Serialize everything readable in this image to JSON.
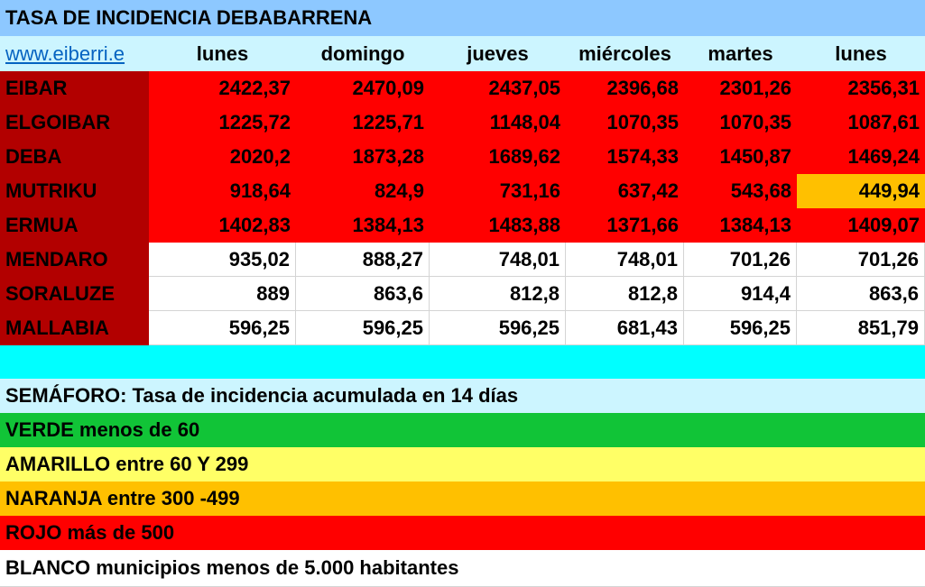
{
  "title": "TASA DE INCIDENCIA DEBABARRENA",
  "link": "www.eiberri.e",
  "days": [
    "lunes",
    "domingo",
    "jueves",
    "miércoles",
    "martes",
    "lunes"
  ],
  "rows": [
    {
      "name": "EIBAR",
      "values": [
        "2422,37",
        "2470,09",
        "2437,05",
        "2396,68",
        "2301,26",
        "2356,31"
      ]
    },
    {
      "name": "ELGOIBAR",
      "values": [
        "1225,72",
        "1225,71",
        "1148,04",
        "1070,35",
        "1070,35",
        "1087,61"
      ]
    },
    {
      "name": "DEBA",
      "values": [
        "2020,2",
        "1873,28",
        "1689,62",
        "1574,33",
        "1450,87",
        "1469,24"
      ]
    },
    {
      "name": "MUTRIKU",
      "values": [
        "918,64",
        "824,9",
        "731,16",
        "637,42",
        "543,68",
        "449,94"
      ]
    },
    {
      "name": "ERMUA",
      "values": [
        "1402,83",
        "1384,13",
        "1483,88",
        "1371,66",
        "1384,13",
        "1409,07"
      ]
    },
    {
      "name": "MENDARO",
      "values": [
        "935,02",
        "888,27",
        "748,01",
        "748,01",
        "701,26",
        "701,26"
      ]
    },
    {
      "name": "SORALUZE",
      "values": [
        "889",
        "863,6",
        "812,8",
        "812,8",
        "914,4",
        "863,6"
      ]
    },
    {
      "name": "MALLABIA",
      "values": [
        "596,25",
        "596,25",
        "596,25",
        "681,43",
        "596,25",
        "851,79"
      ]
    }
  ],
  "cell_colors": [
    [
      "red",
      "red",
      "red",
      "red",
      "red",
      "red"
    ],
    [
      "red",
      "red",
      "red",
      "red",
      "red",
      "red"
    ],
    [
      "red",
      "red",
      "red",
      "red",
      "red",
      "red"
    ],
    [
      "red",
      "red",
      "red",
      "red",
      "red",
      "orange"
    ],
    [
      "red",
      "red",
      "red",
      "red",
      "red",
      "red"
    ],
    [
      "white",
      "white",
      "white",
      "white",
      "white",
      "white"
    ],
    [
      "white",
      "white",
      "white",
      "white",
      "white",
      "white"
    ],
    [
      "white",
      "white",
      "white",
      "white",
      "white",
      "white"
    ]
  ],
  "colors": {
    "title_bg": "#8dc8ff",
    "header_bg": "#ccf5ff",
    "name_bg": "#b20000",
    "red": "#ff0000",
    "orange": "#ffc000",
    "white": "#ffffff",
    "cyan": "#00ffff",
    "green": "#11c437",
    "yellow": "#ffff66",
    "link": "#0563c1"
  },
  "legend": {
    "heading": "SEMÁFORO:  Tasa de incidencia acumulada en 14 días",
    "green": "VERDE menos de 60",
    "yellow": "AMARILLO entre 60 Y 299",
    "orange": "NARANJA entre 300 -499",
    "red": "ROJO más de 500",
    "white": "BLANCO municipios menos de 5.000 habitantes"
  }
}
